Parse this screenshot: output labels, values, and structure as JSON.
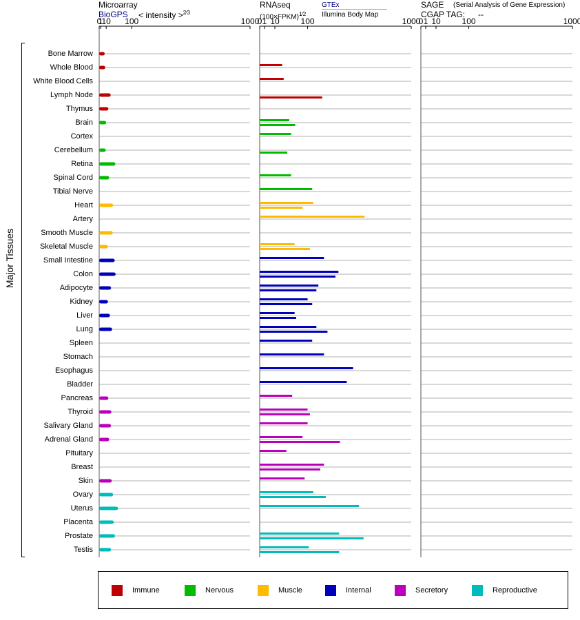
{
  "headers": {
    "microarray_title": "Microarray",
    "microarray_source": "BioGPS",
    "microarray_unit": "< intensity >",
    "microarray_exp": "2⁄3",
    "rnaseq_title": "RNAseq",
    "rnaseq_unit": "(100×FPKM)",
    "rnaseq_exp": "1⁄2",
    "rnaseq_source1": "GTEx",
    "rnaseq_source2": "Illumina Body Map",
    "sage_title": "SAGE",
    "sage_desc": "(Serial Analysis of Gene Expression)",
    "cgap_label": "CGAP TAG:",
    "cgap_value": "--"
  },
  "y_axis_label": "Major Tissues",
  "legend": [
    {
      "label": "Immune",
      "color": "#c00000"
    },
    {
      "label": "Nervous",
      "color": "#00bb00"
    },
    {
      "label": "Muscle",
      "color": "#ffbb00"
    },
    {
      "label": "Internal",
      "color": "#0000bb"
    },
    {
      "label": "Secretory",
      "color": "#bb00bb"
    },
    {
      "label": "Reproductive",
      "color": "#00bbbb"
    }
  ],
  "chart_data": {
    "type": "bar",
    "tick_labels": [
      "0",
      "1",
      "10",
      "100",
      "1000"
    ],
    "ticks": [
      0,
      1,
      10,
      100,
      1000
    ],
    "xlim": [
      0,
      1000
    ],
    "categories": [
      "Bone Marrow",
      "Whole Blood",
      "White Blood Cells",
      "Lymph Node",
      "Thymus",
      "Brain",
      "Cortex",
      "Cerebellum",
      "Retina",
      "Spinal Cord",
      "Tibial Nerve",
      "Heart",
      "Artery",
      "Smooth Muscle",
      "Skeletal Muscle",
      "Small Intestine",
      "Colon",
      "Adipocyte",
      "Kidney",
      "Liver",
      "Lung",
      "Spleen",
      "Stomach",
      "Esophagus",
      "Bladder",
      "Pancreas",
      "Thyroid",
      "Salivary Gland",
      "Adrenal Gland",
      "Pituitary",
      "Breast",
      "Skin",
      "Ovary",
      "Uterus",
      "Placenta",
      "Prostate",
      "Testis"
    ],
    "groups": [
      "Immune",
      "Immune",
      "Immune",
      "Immune",
      "Immune",
      "Nervous",
      "Nervous",
      "Nervous",
      "Nervous",
      "Nervous",
      "Nervous",
      "Muscle",
      "Muscle",
      "Muscle",
      "Muscle",
      "Internal",
      "Internal",
      "Internal",
      "Internal",
      "Internal",
      "Internal",
      "Internal",
      "Internal",
      "Internal",
      "Internal",
      "Secretory",
      "Secretory",
      "Secretory",
      "Secretory",
      "Secretory",
      "Secretory",
      "Secretory",
      "Reproductive",
      "Reproductive",
      "Reproductive",
      "Reproductive",
      "Reproductive"
    ],
    "microarray": [
      7,
      8,
      null,
      21,
      15,
      10,
      null,
      9,
      35,
      17,
      null,
      28,
      null,
      27,
      14,
      33,
      36,
      22,
      14,
      19,
      25,
      null,
      null,
      null,
      null,
      15,
      23,
      22,
      17,
      null,
      null,
      24,
      28,
      44,
      30,
      34,
      22
    ],
    "rnaseq_gtex": [
      null,
      22,
      25,
      null,
      null,
      38,
      43,
      null,
      null,
      43,
      120,
      125,
      480,
      null,
      53,
      180,
      270,
      150,
      100,
      53,
      140,
      120,
      180,
      380,
      330,
      46,
      100,
      100,
      80,
      31,
      180,
      88,
      125,
      430,
      null,
      275,
      105
    ],
    "rnaseq_ibm": [
      null,
      null,
      null,
      170,
      null,
      55,
      null,
      33,
      null,
      null,
      null,
      80,
      null,
      null,
      110,
      null,
      250,
      140,
      120,
      58,
      200,
      null,
      null,
      null,
      null,
      null,
      110,
      null,
      280,
      null,
      160,
      null,
      190,
      null,
      null,
      470,
      275
    ],
    "sage": []
  }
}
